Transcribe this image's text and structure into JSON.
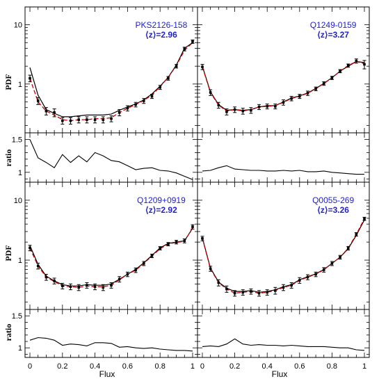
{
  "figure": {
    "x_label": "Flux",
    "pdf_label": "PDF",
    "ratio_label": "ratio",
    "colors": {
      "data": "#000000",
      "model": "#000000",
      "fit": "#cc0000",
      "annotation": "#1f1fcc"
    }
  },
  "chart_data": [
    {
      "type": "line",
      "qso": "PKS2126-158",
      "z_label": "⟨z⟩=2.96",
      "x": [
        0.0,
        0.05,
        0.1,
        0.15,
        0.2,
        0.25,
        0.3,
        0.35,
        0.4,
        0.45,
        0.5,
        0.55,
        0.6,
        0.65,
        0.7,
        0.75,
        0.8,
        0.85,
        0.9,
        0.95,
        1.0
      ],
      "series": [
        {
          "name": "",
          "role": "data",
          "values": [
            1.25,
            0.52,
            0.35,
            0.33,
            0.24,
            0.24,
            0.25,
            0.25,
            0.25,
            0.25,
            0.26,
            0.33,
            0.39,
            0.45,
            0.52,
            0.62,
            0.88,
            1.25,
            2.0,
            3.9,
            5.2
          ],
          "error": [
            0.16,
            0.07,
            0.05,
            0.05,
            0.03,
            0.03,
            0.03,
            0.03,
            0.03,
            0.03,
            0.03,
            0.04,
            0.04,
            0.04,
            0.05,
            0.05,
            0.07,
            0.09,
            0.14,
            0.28,
            0.35
          ]
        },
        {
          "name": "",
          "role": "model",
          "values": [
            1.9,
            0.65,
            0.37,
            0.32,
            0.28,
            0.28,
            0.29,
            0.3,
            0.3,
            0.3,
            0.31,
            0.36,
            0.41,
            0.46,
            0.54,
            0.68,
            0.92,
            1.3,
            2.1,
            4.0,
            5.0
          ]
        },
        {
          "name": "",
          "role": "fit",
          "values": [
            1.25,
            0.5,
            0.35,
            0.3,
            0.25,
            0.24,
            0.25,
            0.25,
            0.26,
            0.26,
            0.27,
            0.33,
            0.39,
            0.45,
            0.53,
            0.65,
            0.9,
            1.3,
            2.05,
            3.7,
            5.0
          ]
        }
      ],
      "ratio": {
        "x": [
          0.0,
          0.05,
          0.1,
          0.15,
          0.2,
          0.25,
          0.3,
          0.35,
          0.4,
          0.45,
          0.5,
          0.55,
          0.6,
          0.65,
          0.7,
          0.75,
          0.8,
          0.85,
          0.9,
          0.95,
          1.0
        ],
        "values": [
          1.5,
          1.22,
          1.15,
          1.07,
          1.27,
          1.15,
          1.25,
          1.16,
          1.3,
          1.25,
          1.18,
          1.16,
          1.1,
          1.04,
          1.06,
          1.07,
          1.03,
          1.02,
          0.99,
          0.94,
          0.89
        ]
      },
      "pdf_ylim": [
        0.15,
        20
      ],
      "ratio_ylim": [
        0.85,
        1.6
      ],
      "log_y": true
    },
    {
      "type": "line",
      "qso": "Q1249-0159",
      "z_label": "⟨z⟩=3.27",
      "x": [
        0.0,
        0.05,
        0.1,
        0.15,
        0.2,
        0.25,
        0.3,
        0.35,
        0.4,
        0.45,
        0.5,
        0.55,
        0.6,
        0.65,
        0.7,
        0.75,
        0.8,
        0.85,
        0.9,
        0.95,
        1.0
      ],
      "series": [
        {
          "name": "",
          "role": "data",
          "values": [
            1.95,
            0.72,
            0.44,
            0.34,
            0.37,
            0.35,
            0.36,
            0.41,
            0.42,
            0.42,
            0.49,
            0.57,
            0.62,
            0.7,
            0.83,
            1.02,
            1.27,
            1.65,
            2.05,
            2.45,
            2.15
          ],
          "error": [
            0.2,
            0.08,
            0.05,
            0.04,
            0.04,
            0.04,
            0.04,
            0.04,
            0.04,
            0.04,
            0.05,
            0.05,
            0.05,
            0.06,
            0.06,
            0.07,
            0.08,
            0.1,
            0.13,
            0.2,
            0.35
          ]
        },
        {
          "name": "",
          "role": "model",
          "values": [
            2.0,
            0.74,
            0.45,
            0.36,
            0.37,
            0.36,
            0.37,
            0.41,
            0.43,
            0.43,
            0.5,
            0.58,
            0.63,
            0.71,
            0.84,
            1.03,
            1.28,
            1.65,
            2.0,
            2.4,
            2.3
          ]
        },
        {
          "name": "",
          "role": "fit",
          "values": [
            1.95,
            0.72,
            0.44,
            0.35,
            0.37,
            0.35,
            0.37,
            0.41,
            0.42,
            0.43,
            0.49,
            0.57,
            0.62,
            0.7,
            0.83,
            1.02,
            1.27,
            1.65,
            2.05,
            2.4,
            2.2
          ]
        }
      ],
      "ratio": {
        "x": [
          0.0,
          0.05,
          0.1,
          0.15,
          0.2,
          0.25,
          0.3,
          0.35,
          0.4,
          0.45,
          0.5,
          0.55,
          0.6,
          0.65,
          0.7,
          0.75,
          0.8,
          0.85,
          0.9,
          0.95,
          1.0
        ],
        "values": [
          1.02,
          1.03,
          1.07,
          1.1,
          1.05,
          1.04,
          1.03,
          1.03,
          1.02,
          1.02,
          1.03,
          1.02,
          1.03,
          1.01,
          1.01,
          1.02,
          1.0,
          0.99,
          0.98,
          0.97,
          0.97
        ]
      },
      "pdf_ylim": [
        0.15,
        20
      ],
      "ratio_ylim": [
        0.85,
        1.6
      ],
      "log_y": true
    },
    {
      "type": "line",
      "qso": "Q1209+0919",
      "z_label": "⟨z⟩=2.92",
      "x": [
        0.0,
        0.05,
        0.1,
        0.15,
        0.2,
        0.25,
        0.3,
        0.35,
        0.4,
        0.45,
        0.5,
        0.55,
        0.6,
        0.65,
        0.7,
        0.75,
        0.8,
        0.85,
        0.9,
        0.95,
        1.0
      ],
      "series": [
        {
          "name": "",
          "role": "data",
          "values": [
            1.6,
            0.8,
            0.52,
            0.45,
            0.37,
            0.36,
            0.35,
            0.38,
            0.36,
            0.35,
            0.38,
            0.48,
            0.58,
            0.68,
            0.88,
            1.18,
            1.58,
            1.85,
            2.0,
            2.1,
            3.6
          ],
          "error": [
            0.17,
            0.09,
            0.06,
            0.05,
            0.04,
            0.04,
            0.04,
            0.04,
            0.04,
            0.04,
            0.04,
            0.05,
            0.05,
            0.06,
            0.07,
            0.08,
            0.1,
            0.12,
            0.14,
            0.16,
            0.3
          ]
        },
        {
          "name": "",
          "role": "model",
          "values": [
            1.75,
            0.85,
            0.54,
            0.45,
            0.39,
            0.37,
            0.37,
            0.39,
            0.38,
            0.38,
            0.4,
            0.48,
            0.58,
            0.7,
            0.9,
            1.2,
            1.6,
            1.9,
            2.0,
            2.1,
            3.4
          ]
        },
        {
          "name": "",
          "role": "fit",
          "values": [
            1.6,
            0.8,
            0.52,
            0.44,
            0.37,
            0.36,
            0.35,
            0.37,
            0.36,
            0.36,
            0.38,
            0.47,
            0.58,
            0.68,
            0.88,
            1.17,
            1.55,
            1.85,
            1.98,
            2.05,
            3.5
          ]
        }
      ],
      "ratio": {
        "x": [
          0.0,
          0.05,
          0.1,
          0.15,
          0.2,
          0.25,
          0.3,
          0.35,
          0.4,
          0.45,
          0.5,
          0.55,
          0.6,
          0.65,
          0.7,
          0.75,
          0.8,
          0.85,
          0.9,
          0.95,
          1.0
        ],
        "values": [
          1.12,
          1.16,
          1.15,
          1.12,
          1.04,
          1.06,
          1.05,
          1.03,
          1.08,
          1.08,
          1.07,
          1.01,
          1.02,
          1.0,
          0.99,
          1.0,
          0.98,
          0.97,
          0.96,
          0.96,
          0.95
        ]
      },
      "pdf_ylim": [
        0.15,
        20
      ],
      "ratio_ylim": [
        0.85,
        1.6
      ],
      "log_y": true
    },
    {
      "type": "line",
      "qso": "Q0055-269",
      "z_label": "⟨z⟩=3.26",
      "x": [
        0.0,
        0.05,
        0.1,
        0.15,
        0.2,
        0.25,
        0.3,
        0.35,
        0.4,
        0.45,
        0.5,
        0.55,
        0.6,
        0.65,
        0.7,
        0.75,
        0.8,
        0.85,
        0.9,
        0.95,
        1.0
      ],
      "series": [
        {
          "name": "",
          "role": "data",
          "values": [
            2.3,
            0.72,
            0.42,
            0.33,
            0.28,
            0.29,
            0.3,
            0.28,
            0.29,
            0.31,
            0.35,
            0.38,
            0.46,
            0.52,
            0.58,
            0.69,
            0.88,
            1.12,
            1.58,
            2.7,
            4.9
          ],
          "error": [
            0.2,
            0.07,
            0.05,
            0.04,
            0.03,
            0.03,
            0.03,
            0.03,
            0.03,
            0.04,
            0.04,
            0.04,
            0.05,
            0.05,
            0.05,
            0.06,
            0.07,
            0.08,
            0.11,
            0.18,
            0.3
          ]
        },
        {
          "name": "",
          "role": "model",
          "values": [
            2.35,
            0.74,
            0.43,
            0.34,
            0.3,
            0.3,
            0.31,
            0.29,
            0.3,
            0.32,
            0.36,
            0.39,
            0.47,
            0.53,
            0.59,
            0.7,
            0.88,
            1.12,
            1.55,
            2.6,
            4.7
          ]
        },
        {
          "name": "",
          "role": "fit",
          "values": [
            2.3,
            0.72,
            0.42,
            0.33,
            0.28,
            0.29,
            0.3,
            0.28,
            0.29,
            0.31,
            0.35,
            0.38,
            0.46,
            0.52,
            0.58,
            0.69,
            0.88,
            1.12,
            1.58,
            2.7,
            4.9
          ]
        }
      ],
      "ratio": {
        "x": [
          0.0,
          0.05,
          0.1,
          0.15,
          0.2,
          0.25,
          0.3,
          0.35,
          0.4,
          0.45,
          0.5,
          0.55,
          0.6,
          0.65,
          0.7,
          0.75,
          0.8,
          0.85,
          0.9,
          0.95,
          1.0
        ],
        "values": [
          1.02,
          1.03,
          1.02,
          1.06,
          1.14,
          1.06,
          1.04,
          1.05,
          1.04,
          1.04,
          1.03,
          1.04,
          1.03,
          1.02,
          1.02,
          1.02,
          1.01,
          1.0,
          1.0,
          0.97,
          0.96
        ]
      },
      "pdf_ylim": [
        0.15,
        20
      ],
      "ratio_ylim": [
        0.85,
        1.6
      ],
      "log_y": true
    }
  ]
}
